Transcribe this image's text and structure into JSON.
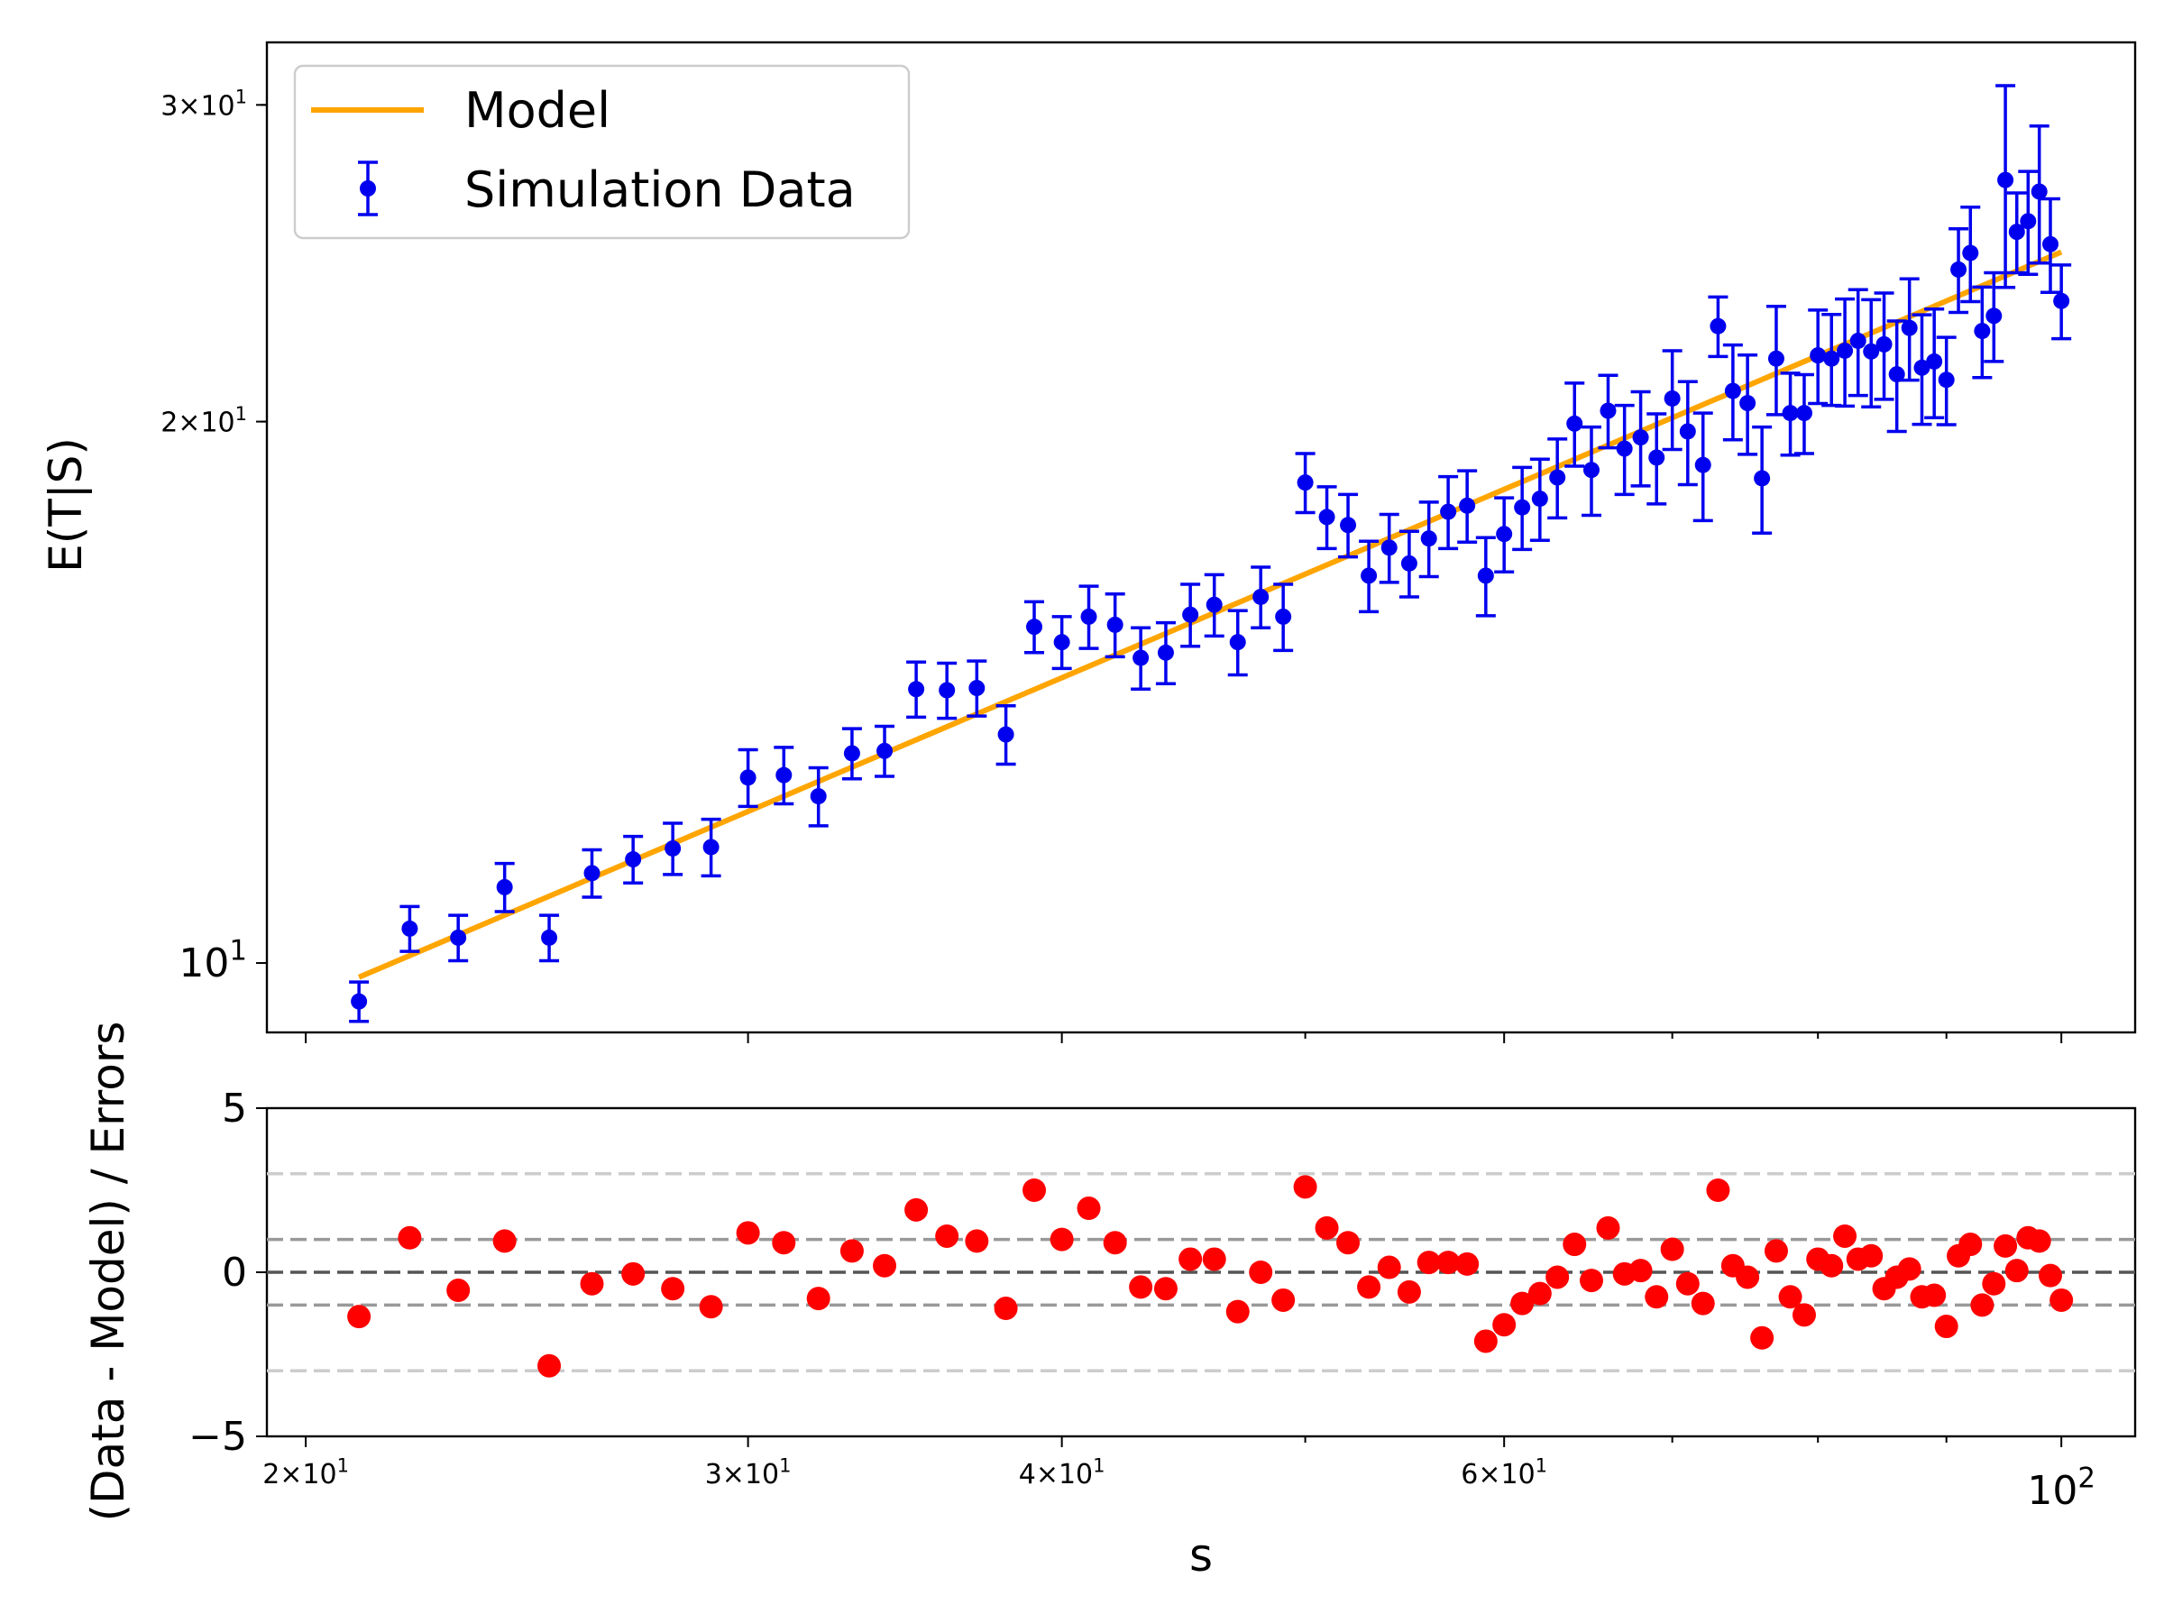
{
  "chart_data": [
    {
      "type": "scatter",
      "panel": "main",
      "xscale": "log",
      "yscale": "log",
      "xlim": [
        19.3,
        107
      ],
      "ylim": [
        9.15,
        32.5
      ],
      "xlabel": "",
      "ylabel": "E(T|S)",
      "legend": {
        "placement": "top-left",
        "entries": [
          "Model",
          "Simulation Data"
        ]
      },
      "y_ticks": [
        {
          "value": 10,
          "base": "10",
          "exp": "1",
          "coef": "",
          "size": "large"
        },
        {
          "value": 20,
          "base": "10",
          "exp": "1",
          "coef": "2",
          "size": "small"
        },
        {
          "value": 30,
          "base": "10",
          "exp": "1",
          "coef": "3",
          "size": "small"
        }
      ],
      "y_minor_ticks": [
        9,
        20,
        30,
        40
      ],
      "colors": {
        "data": "#0000ee",
        "model": "#ffa500"
      },
      "series": [
        {
          "name": "Model",
          "kind": "line",
          "color": "#ffa500",
          "x": [
            21,
            100
          ],
          "y": [
            9.82,
            24.85
          ]
        },
        {
          "name": "Simulation Data",
          "kind": "errorbar",
          "color": "#0000ee",
          "x": [
            21,
            22,
            23,
            24,
            25,
            26,
            27,
            28,
            29,
            30,
            31,
            32,
            33,
            34,
            35,
            36,
            37,
            38,
            39,
            40,
            41,
            42,
            43,
            44,
            45,
            46,
            47,
            48,
            49,
            50,
            51,
            52,
            53,
            54,
            55,
            56,
            57,
            58,
            59,
            60,
            61,
            62,
            63,
            64,
            65,
            66,
            67,
            68,
            69,
            70,
            71,
            72,
            73,
            74,
            75,
            76,
            77,
            78,
            79,
            80,
            81,
            82,
            83,
            84,
            85,
            86,
            87,
            88,
            89,
            90,
            91,
            92,
            93,
            94,
            95,
            96,
            97,
            98,
            99,
            100
          ],
          "y": [
            9.52,
            10.45,
            10.33,
            11.02,
            10.33,
            11.22,
            11.42,
            11.58,
            11.6,
            12.68,
            12.72,
            12.38,
            13.08,
            13.12,
            14.2,
            14.18,
            14.22,
            13.4,
            15.38,
            15.08,
            15.58,
            15.42,
            14.78,
            14.88,
            15.62,
            15.82,
            15.08,
            15.98,
            15.58,
            18.5,
            17.7,
            17.52,
            16.42,
            17.02,
            16.68,
            17.22,
            17.82,
            17.96,
            16.42,
            17.32,
            17.92,
            18.12,
            18.62,
            19.95,
            18.8,
            20.28,
            19.32,
            19.6,
            19.1,
            20.6,
            19.75,
            18.92,
            22.6,
            20.8,
            20.48,
            18.6,
            21.68,
            20.22,
            20.22,
            21.77,
            21.68,
            21.9,
            22.18,
            21.88,
            22.08,
            21.25,
            22.55,
            21.43,
            21.6,
            21.1,
            24.3,
            24.82,
            22.46,
            22.9,
            27.25,
            25.5,
            25.85,
            26.85,
            25.1,
            23.34
          ],
          "err": [
            0.24,
            0.3,
            0.3,
            0.34,
            0.3,
            0.34,
            0.34,
            0.38,
            0.42,
            0.46,
            0.46,
            0.46,
            0.42,
            0.42,
            0.5,
            0.5,
            0.5,
            0.5,
            0.5,
            0.5,
            0.62,
            0.62,
            0.58,
            0.58,
            0.62,
            0.62,
            0.62,
            0.62,
            0.66,
            0.7,
            0.7,
            0.7,
            0.74,
            0.74,
            0.7,
            0.82,
            0.82,
            0.82,
            0.82,
            0.82,
            0.94,
            0.94,
            0.94,
            1.06,
            1.06,
            0.94,
            1.1,
            1.18,
            1.1,
            1.3,
            1.3,
            1.3,
            0.86,
            1.26,
            1.3,
            1.26,
            1.5,
            1.06,
            1.02,
            1.3,
            1.26,
            1.5,
            1.5,
            1.5,
            1.5,
            1.5,
            1.46,
            1.5,
            1.5,
            1.18,
            1.3,
            1.5,
            1.3,
            1.3,
            3.5,
            1.3,
            1.7,
            2.35,
            1.5,
            1.1
          ]
        }
      ]
    },
    {
      "type": "scatter",
      "panel": "residuals",
      "xscale": "log",
      "xlim": [
        19.3,
        107
      ],
      "ylim": [
        -5,
        5
      ],
      "xlabel": "s",
      "ylabel": "(Data - Model) / Errors",
      "x_ticks": [
        {
          "value": 20,
          "base": "10",
          "exp": "1",
          "coef": "2",
          "size": "small"
        },
        {
          "value": 30,
          "base": "10",
          "exp": "1",
          "coef": "3",
          "size": "small"
        },
        {
          "value": 40,
          "base": "10",
          "exp": "1",
          "coef": "4",
          "size": "small"
        },
        {
          "value": 60,
          "base": "10",
          "exp": "1",
          "coef": "6",
          "size": "small"
        },
        {
          "value": 100,
          "base": "10",
          "exp": "2",
          "coef": "",
          "size": "large"
        }
      ],
      "x_minor_ticks": [
        50,
        70,
        80,
        90
      ],
      "y_ticks": [
        "5",
        "0",
        "−5"
      ],
      "y_tick_values": [
        5,
        0,
        -5
      ],
      "reference_lines": [
        {
          "y": 3,
          "color": "#cccccc"
        },
        {
          "y": 1,
          "color": "#999999"
        },
        {
          "y": 0,
          "color": "#555555"
        },
        {
          "y": -1,
          "color": "#999999"
        },
        {
          "y": -3,
          "color": "#cccccc"
        }
      ],
      "color": "#ff0000",
      "series": [
        {
          "kind": "points",
          "x": [
            21,
            22,
            23,
            24,
            25,
            26,
            27,
            28,
            29,
            30,
            31,
            32,
            33,
            34,
            35,
            36,
            37,
            38,
            39,
            40,
            41,
            42,
            43,
            44,
            45,
            46,
            47,
            48,
            49,
            50,
            51,
            52,
            53,
            54,
            55,
            56,
            57,
            58,
            59,
            60,
            61,
            62,
            63,
            64,
            65,
            66,
            67,
            68,
            69,
            70,
            71,
            72,
            73,
            74,
            75,
            76,
            77,
            78,
            79,
            80,
            81,
            82,
            83,
            84,
            85,
            86,
            87,
            88,
            89,
            90,
            91,
            92,
            93,
            94,
            95,
            96,
            97,
            98,
            99,
            100
          ],
          "y": [
            -1.35,
            1.05,
            -0.55,
            0.95,
            -2.85,
            -0.35,
            -0.05,
            -0.5,
            -1.05,
            1.2,
            0.9,
            -0.8,
            0.65,
            0.2,
            1.9,
            1.1,
            0.95,
            -1.1,
            2.5,
            1.0,
            1.95,
            0.9,
            -0.45,
            -0.5,
            0.4,
            0.4,
            -1.2,
            0.0,
            -0.85,
            2.6,
            1.35,
            0.9,
            -0.45,
            0.15,
            -0.6,
            0.3,
            0.3,
            0.25,
            -2.1,
            -1.6,
            -0.95,
            -0.65,
            -0.15,
            0.85,
            -0.25,
            1.35,
            -0.05,
            0.05,
            -0.75,
            0.7,
            -0.35,
            -0.95,
            2.5,
            0.2,
            -0.15,
            -2.0,
            0.65,
            -0.75,
            -1.3,
            0.4,
            0.2,
            1.1,
            0.4,
            0.5,
            -0.5,
            -0.15,
            0.1,
            -0.75,
            -0.7,
            -1.65,
            0.5,
            0.85,
            -1.0,
            -0.35,
            0.8,
            0.05,
            1.05,
            0.95,
            -0.1,
            -0.85
          ]
        }
      ]
    }
  ]
}
